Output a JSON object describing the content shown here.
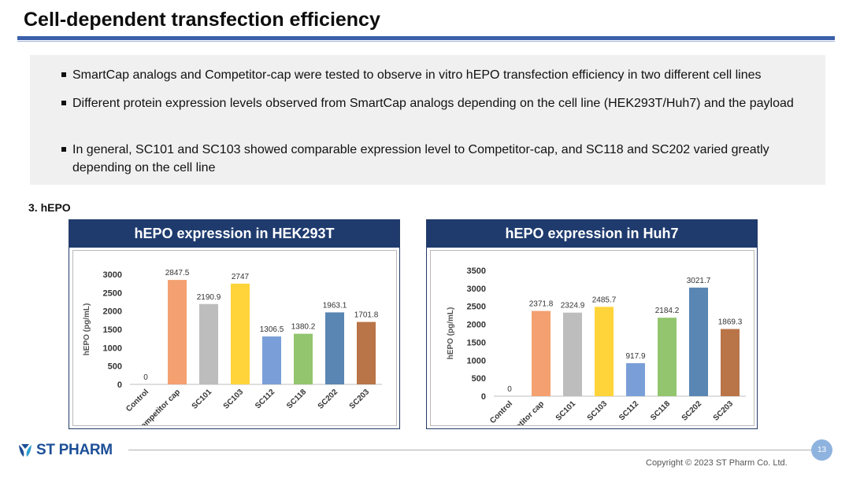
{
  "page": {
    "title": "Cell-dependent transfection efficiency",
    "bullets": [
      "SmartCap analogs and Competitor-cap were tested to observe in vitro hEPO transfection efficiency in two different cell lines",
      "Different protein expression levels observed from SmartCap analogs depending on the cell line (HEK293T/Huh7) and the payload",
      "In general, SC101 and SC103 showed comparable expression level to Competitor-cap, and SC118 and SC202 varied greatly depending on the cell line"
    ],
    "section_label": "3. hEPO",
    "panels": [
      "hEPO expression in HEK293T",
      "hEPO expression in Huh7"
    ],
    "logo_text": "ST PHARM",
    "page_number": "13",
    "copyright": "Copyright © 2023 ST Pharm Co. Ltd."
  },
  "chart_data": [
    {
      "type": "bar",
      "title": "hEPO expression in HEK293T",
      "ylabel": "hEPO (pg/mL)",
      "xlabel": "",
      "categories": [
        "Control",
        "Competitor cap",
        "SC101",
        "SC103",
        "SC112",
        "SC118",
        "SC202",
        "SC203"
      ],
      "values": [
        0,
        2847.5,
        2190.9,
        2747,
        1306.5,
        1380.2,
        1963.1,
        1701.8
      ],
      "labels": [
        "0",
        "2847.5",
        "2190.9",
        "2747",
        "1306.5",
        "1380.2",
        "1963.1",
        "1701.8"
      ],
      "colors": [
        "#ffffff",
        "#f4a070",
        "#bdbdbd",
        "#ffd43b",
        "#7a9fd8",
        "#92c56e",
        "#5a86b3",
        "#b97448"
      ],
      "ylim": [
        0,
        3000
      ],
      "yticks": [
        "0",
        "500",
        "1000",
        "1500",
        "2000",
        "2500",
        "3000"
      ],
      "grid": false,
      "legend": "none"
    },
    {
      "type": "bar",
      "title": "hEPO expression in Huh7",
      "ylabel": "hEPO (pg/mL)",
      "xlabel": "",
      "categories": [
        "Control",
        "Competitor cap",
        "SC101",
        "SC103",
        "SC112",
        "SC118",
        "SC202",
        "SC203"
      ],
      "values": [
        0,
        2371.8,
        2324.9,
        2485.7,
        917.9,
        2184.2,
        3021.7,
        1869.3
      ],
      "labels": [
        "0",
        "2371.8",
        "2324.9",
        "2485.7",
        "917.9",
        "2184.2",
        "3021.7",
        "1869.3"
      ],
      "colors": [
        "#ffffff",
        "#f4a070",
        "#bdbdbd",
        "#ffd43b",
        "#7a9fd8",
        "#92c56e",
        "#5a86b3",
        "#b97448"
      ],
      "ylim": [
        0,
        3500
      ],
      "yticks": [
        "0",
        "500",
        "1000",
        "1500",
        "2000",
        "2500",
        "3000",
        "3500"
      ],
      "grid": false,
      "legend": "none"
    }
  ]
}
